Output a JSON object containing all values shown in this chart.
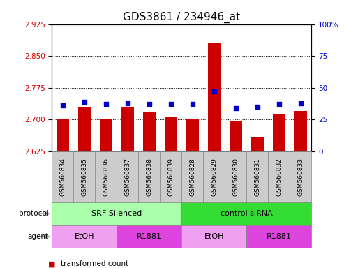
{
  "title": "GDS3861 / 234946_at",
  "samples": [
    "GSM560834",
    "GSM560835",
    "GSM560836",
    "GSM560837",
    "GSM560838",
    "GSM560839",
    "GSM560828",
    "GSM560829",
    "GSM560830",
    "GSM560831",
    "GSM560832",
    "GSM560833"
  ],
  "transformed_count": [
    2.7,
    2.73,
    2.703,
    2.73,
    2.718,
    2.706,
    2.7,
    2.88,
    2.695,
    2.658,
    2.714,
    2.72
  ],
  "percentile_rank": [
    36,
    39,
    37,
    38,
    37,
    37,
    37,
    47,
    34,
    35,
    37,
    38
  ],
  "ylim_left": [
    2.625,
    2.925
  ],
  "ylim_right": [
    0,
    100
  ],
  "yticks_left": [
    2.625,
    2.7,
    2.775,
    2.85,
    2.925
  ],
  "yticks_right": [
    0,
    25,
    50,
    75,
    100
  ],
  "bar_color": "#cc0000",
  "dot_color": "#0000cc",
  "bar_bottom": 2.625,
  "protocol_groups": [
    {
      "label": "SRF Silenced",
      "start": 0,
      "end": 6,
      "color": "#aaffaa"
    },
    {
      "label": "control siRNA",
      "start": 6,
      "end": 12,
      "color": "#33dd33"
    }
  ],
  "agent_groups": [
    {
      "label": "EtOH",
      "start": 0,
      "end": 3,
      "color": "#f0a0f0"
    },
    {
      "label": "R1881",
      "start": 3,
      "end": 6,
      "color": "#dd44dd"
    },
    {
      "label": "EtOH",
      "start": 6,
      "end": 9,
      "color": "#f0a0f0"
    },
    {
      "label": "R1881",
      "start": 9,
      "end": 12,
      "color": "#dd44dd"
    }
  ],
  "ylabel_left_color": "#cc0000",
  "ylabel_right_color": "#0000cc",
  "title_fontsize": 11,
  "tick_fontsize": 7.5,
  "bar_width": 0.6,
  "sample_box_color": "#cccccc",
  "protocol_label_color": "#555555",
  "arrow_color": "#888888"
}
